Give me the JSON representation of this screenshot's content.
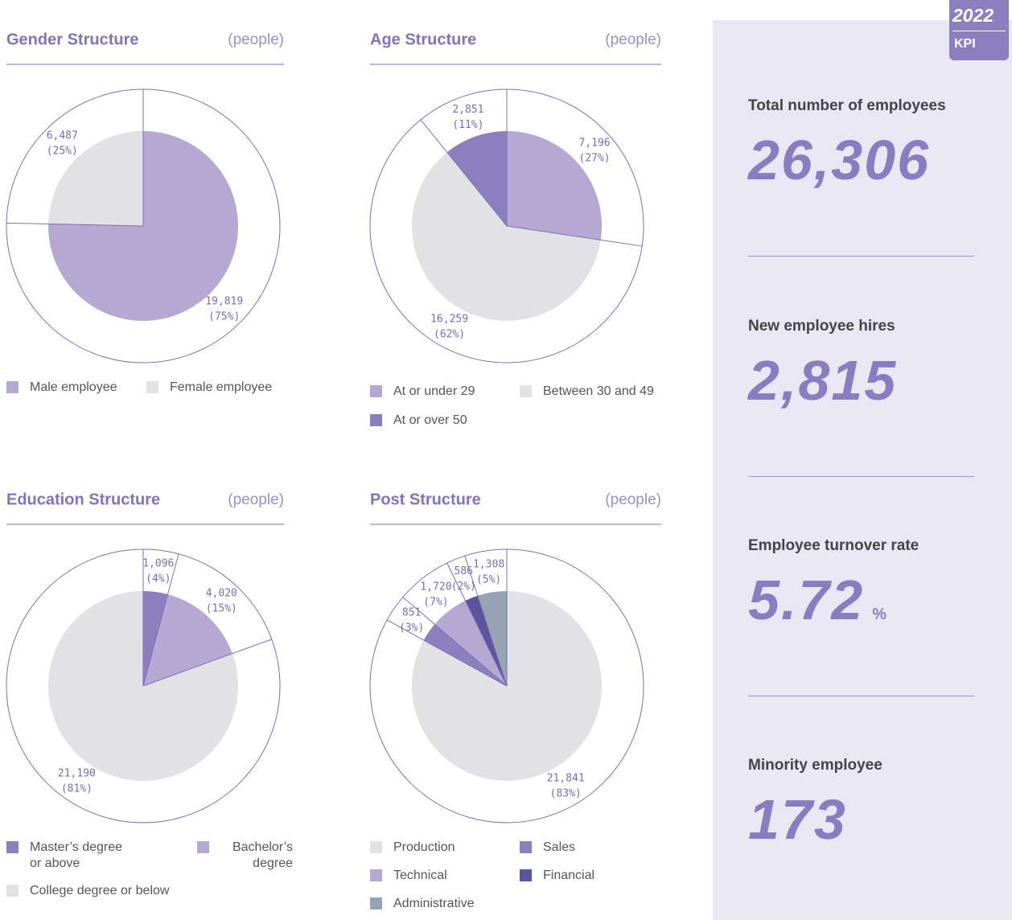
{
  "chart_data": [
    {
      "type": "pie",
      "title": "Gender Structure",
      "unit": "(people)",
      "categories": [
        "Male employee",
        "Female employee"
      ],
      "values": [
        19819,
        6487
      ],
      "value_labels": [
        "19,819",
        "6,487"
      ],
      "percent_labels": [
        "(75%)",
        "(25%)"
      ],
      "colors": [
        "#b5a9d4",
        "#e2e2e4"
      ]
    },
    {
      "type": "pie",
      "title": "Age Structure",
      "unit": "(people)",
      "categories": [
        "At or under 29",
        "Between 30 and 49",
        "At or over 50"
      ],
      "values": [
        7196,
        16259,
        2851
      ],
      "value_labels": [
        "7,196",
        "16,259",
        "2,851"
      ],
      "percent_labels": [
        "(27%)",
        "(62%)",
        "(11%)"
      ],
      "colors": [
        "#b5a9d4",
        "#e2e2e4",
        "#8c7fbe"
      ]
    },
    {
      "type": "pie",
      "title": "Education Structure",
      "unit": "(people)",
      "categories": [
        "Master’s degree or above",
        "Bachelor’s degree",
        "College degree or below"
      ],
      "values": [
        1096,
        4020,
        21190
      ],
      "value_labels": [
        "1,096",
        "4,020",
        "21,190"
      ],
      "percent_labels": [
        "(4%)",
        "(15%)",
        "(81%)"
      ],
      "colors": [
        "#8c7fbe",
        "#b5a9d4",
        "#e2e2e4"
      ]
    },
    {
      "type": "pie",
      "title": "Post Structure",
      "unit": "(people)",
      "categories": [
        "Production",
        "Sales",
        "Technical",
        "Financial",
        "Administrative"
      ],
      "values": [
        21841,
        851,
        1720,
        586,
        1308
      ],
      "value_labels": [
        "21,841",
        "851",
        "1,720",
        "586",
        "1,308"
      ],
      "percent_labels": [
        "(83%)",
        "(3%)",
        "(7%)",
        "(2%)",
        "(5%)"
      ],
      "colors": [
        "#e2e2e4",
        "#8c7fbe",
        "#b5a9d4",
        "#5b559e",
        "#97a3b3"
      ]
    }
  ],
  "kpi": {
    "year": "2022",
    "badge": "KPI",
    "items": [
      {
        "label": "Total number of employees",
        "value": "26,306"
      },
      {
        "label": "New employee hires",
        "value": "2,815"
      },
      {
        "label": "Employee turnover rate",
        "value": "5.72",
        "unit": "%"
      },
      {
        "label": "Minority employee",
        "value": "173"
      }
    ]
  }
}
